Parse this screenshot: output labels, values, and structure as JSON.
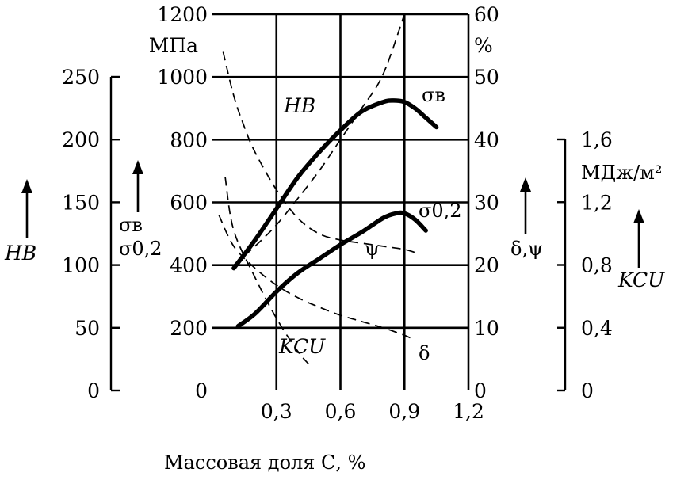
{
  "chart_data": {
    "type": "line",
    "xlabel": "Массовая доля С, %",
    "x_ticks": [
      "0,3",
      "0,6",
      "0,9",
      "1,2"
    ],
    "xlim": [
      0,
      1.2
    ],
    "axes": {
      "hb": {
        "label": "HB",
        "ticks": [
          "0",
          "50",
          "100",
          "150",
          "200",
          "250"
        ],
        "range": [
          0,
          250
        ]
      },
      "strength": {
        "unit": "МПа",
        "label_top": "σв",
        "label_bottom": "σ0,2",
        "ticks": [
          "0",
          "200",
          "400",
          "600",
          "800",
          "1000",
          "1200"
        ],
        "range": [
          0,
          1200
        ]
      },
      "percent": {
        "unit": "%",
        "label": "δ,ψ",
        "ticks": [
          "0",
          "10",
          "20",
          "30",
          "40",
          "50",
          "60"
        ],
        "range": [
          0,
          60
        ]
      },
      "kcu": {
        "unit": "МДж/м²",
        "label": "KCU",
        "ticks": [
          "0",
          "0,4",
          "0,8",
          "1,2",
          "1,6"
        ],
        "range": [
          0,
          1.6
        ]
      }
    },
    "series": [
      {
        "name": "σв",
        "axis": "strength",
        "style": "solid",
        "x": [
          0.1,
          0.2,
          0.3,
          0.4,
          0.5,
          0.6,
          0.7,
          0.8,
          0.85,
          0.9,
          0.95,
          1.0,
          1.05
        ],
        "y": [
          390,
          480,
          580,
          680,
          760,
          830,
          890,
          920,
          925,
          920,
          900,
          870,
          840
        ]
      },
      {
        "name": "σ0,2",
        "axis": "strength",
        "style": "solid",
        "x": [
          0.12,
          0.2,
          0.3,
          0.4,
          0.5,
          0.6,
          0.7,
          0.8,
          0.86,
          0.9,
          0.95,
          1.0
        ],
        "y": [
          205,
          245,
          315,
          375,
          420,
          465,
          505,
          550,
          565,
          565,
          545,
          510
        ]
      },
      {
        "name": "HB",
        "axis": "hb",
        "style": "dashed",
        "x": [
          0.1,
          0.2,
          0.3,
          0.4,
          0.5,
          0.6,
          0.7,
          0.8,
          0.9
        ],
        "y": [
          100,
          115,
          132,
          153,
          175,
          200,
          225,
          252,
          300
        ]
      },
      {
        "name": "ψ",
        "axis": "percent",
        "style": "dashed",
        "x": [
          0.05,
          0.1,
          0.15,
          0.2,
          0.3,
          0.4,
          0.5,
          0.6,
          0.7,
          0.8,
          0.9,
          0.95
        ],
        "y": [
          54,
          47,
          42,
          38,
          32,
          27.5,
          25,
          24,
          23.5,
          23,
          22.5,
          22
        ]
      },
      {
        "name": "δ",
        "axis": "percent",
        "style": "dashed",
        "x": [
          0.03,
          0.1,
          0.2,
          0.3,
          0.4,
          0.5,
          0.6,
          0.7,
          0.8,
          0.9,
          0.95
        ],
        "y": [
          28,
          23,
          19.5,
          16.8,
          14.8,
          13.3,
          12,
          11,
          10,
          8.8,
          8
        ]
      },
      {
        "name": "KCU",
        "axis": "kcu",
        "style": "dashed",
        "x": [
          0.06,
          0.1,
          0.2,
          0.3,
          0.4,
          0.45
        ],
        "y": [
          1.36,
          1.02,
          0.72,
          0.46,
          0.25,
          0.17
        ]
      }
    ],
    "curve_labels": [
      "HB",
      "σв",
      "σ0,2",
      "ψ",
      "KCU",
      "δ"
    ],
    "grid": true
  }
}
